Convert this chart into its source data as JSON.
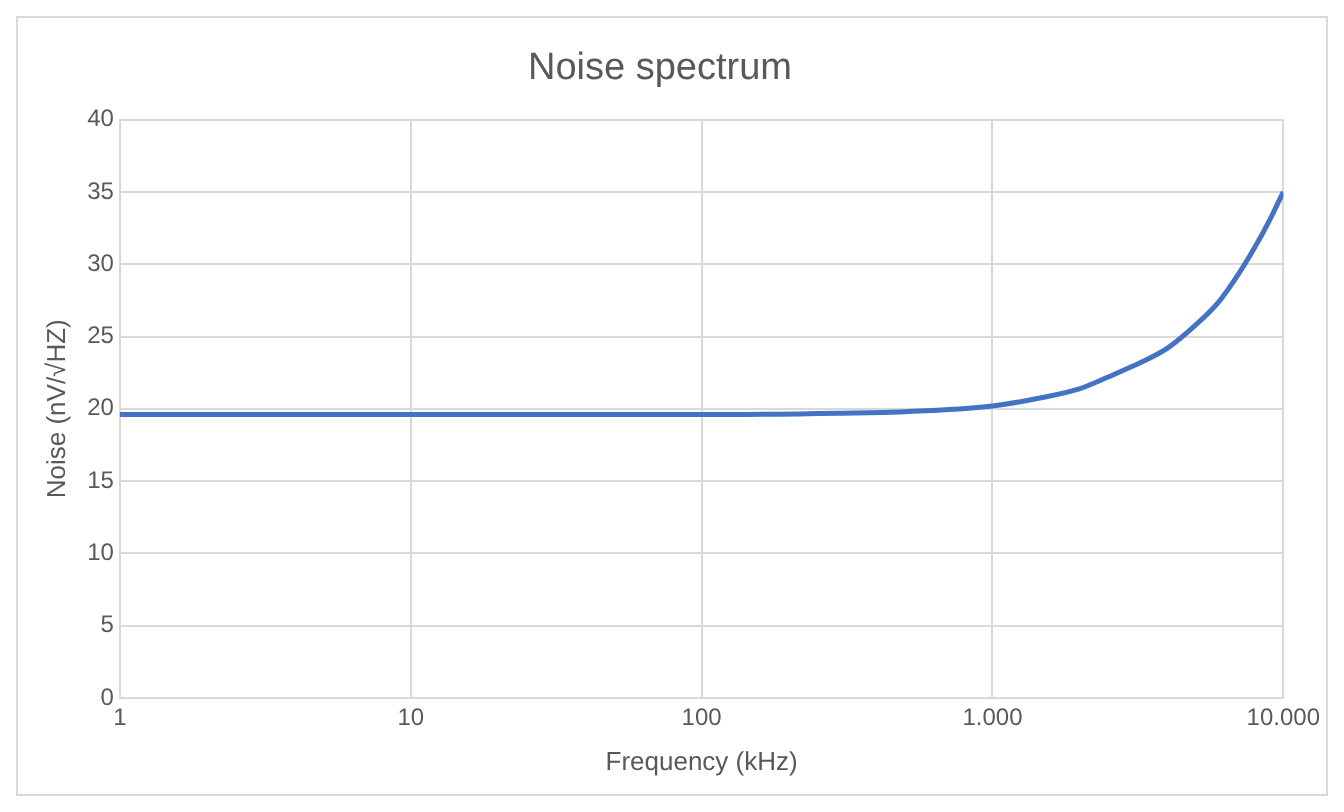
{
  "chart_data": {
    "type": "line",
    "title": "Noise spectrum",
    "xlabel": "Frequency (kHz)",
    "ylabel": "Noise (nV/√HZ)",
    "x": [
      1,
      10,
      100,
      300,
      500,
      1000,
      1500,
      2000,
      2500,
      3000,
      4000,
      5000,
      6000,
      7000,
      8000,
      9000,
      10000
    ],
    "series": [
      {
        "color": "#4472c4",
        "values": [
          19.6,
          19.6,
          19.6,
          19.7,
          19.8,
          20.2,
          20.8,
          21.4,
          22.2,
          22.9,
          24.2,
          25.8,
          27.4,
          29.3,
          31.2,
          33.1,
          35
        ]
      }
    ],
    "log": "x",
    "xlim": [
      1,
      10000
    ],
    "xticks": [
      1,
      10,
      100,
      {
        "value": 1000,
        "label": "1.000"
      },
      {
        "value": 10000,
        "label": "10.000"
      }
    ],
    "ylim": [
      0,
      40
    ],
    "yticks": [
      0,
      5,
      10,
      15,
      20,
      25,
      30,
      35,
      40
    ],
    "grid": true,
    "legend": false,
    "marker": "none",
    "line_style": "solid"
  }
}
